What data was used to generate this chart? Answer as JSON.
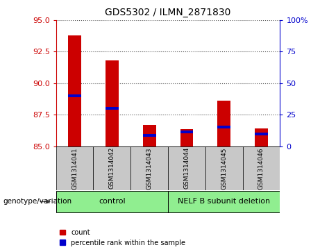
{
  "title": "GDS5302 / ILMN_2871830",
  "samples": [
    "GSM1314041",
    "GSM1314042",
    "GSM1314043",
    "GSM1314044",
    "GSM1314045",
    "GSM1314046"
  ],
  "count_values": [
    93.8,
    91.8,
    86.7,
    86.35,
    88.6,
    86.4
  ],
  "percentile_values": [
    89.0,
    88.0,
    85.85,
    86.15,
    86.5,
    85.95
  ],
  "ylim_left": [
    85,
    95
  ],
  "yticks_left": [
    85,
    87.5,
    90,
    92.5,
    95
  ],
  "ylim_right": [
    0,
    100
  ],
  "yticks_right": [
    0,
    25,
    50,
    75,
    100
  ],
  "bar_color_count": "#cc0000",
  "bar_color_percentile": "#0000cc",
  "bar_width": 0.35,
  "background_plot": "#ffffff",
  "background_label": "#c8c8c8",
  "background_group": "#90EE90",
  "dotted_grid_color": "#555555",
  "right_axis_color": "#0000cc",
  "left_axis_color": "#cc0000",
  "group1_label": "control",
  "group2_label": "NELF B subunit deletion",
  "genotype_label": "genotype/variation"
}
